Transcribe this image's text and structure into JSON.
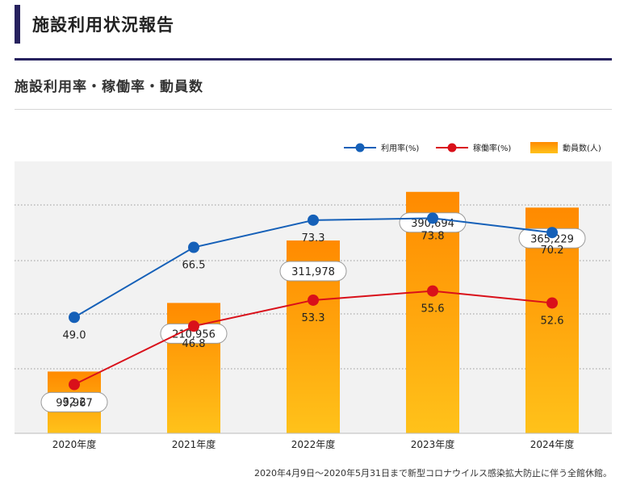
{
  "page": {
    "title": "施設利用状況報告",
    "section_title": "施設利用率・稼働率・動員数",
    "footnote": "2020年4月9日～2020年5月31日まで新型コロナウイルス感染拡大防止に伴う全館休館。"
  },
  "chart_data": {
    "type": "bar+line",
    "categories": [
      "2020年度",
      "2021年度",
      "2022年度",
      "2023年度",
      "2024年度"
    ],
    "grid": true,
    "legend_position": "top-right",
    "bar_ylim": [
      0,
      440000
    ],
    "line_ylim": [
      20,
      88
    ],
    "series": [
      {
        "name": "利用率(%)",
        "type": "line",
        "color": "#1560b8",
        "values": [
          49.0,
          66.5,
          73.3,
          73.8,
          70.2
        ],
        "labels": [
          "49.0",
          "66.5",
          "73.3",
          "73.8",
          "70.2"
        ]
      },
      {
        "name": "稼働率(%)",
        "type": "line",
        "color": "#d9101a",
        "values": [
          32.2,
          46.8,
          53.3,
          55.6,
          52.6
        ],
        "labels": [
          "32.2",
          "46.8",
          "53.3",
          "55.6",
          "52.6"
        ]
      },
      {
        "name": "動員数(人)",
        "type": "bar",
        "color_top": "#ff8a00",
        "color_bottom": "#ffc21a",
        "values": [
          99967,
          210956,
          311978,
          390694,
          365229
        ],
        "labels": [
          "99,967",
          "210,956",
          "311,978",
          "390,694",
          "365,229"
        ]
      }
    ]
  }
}
